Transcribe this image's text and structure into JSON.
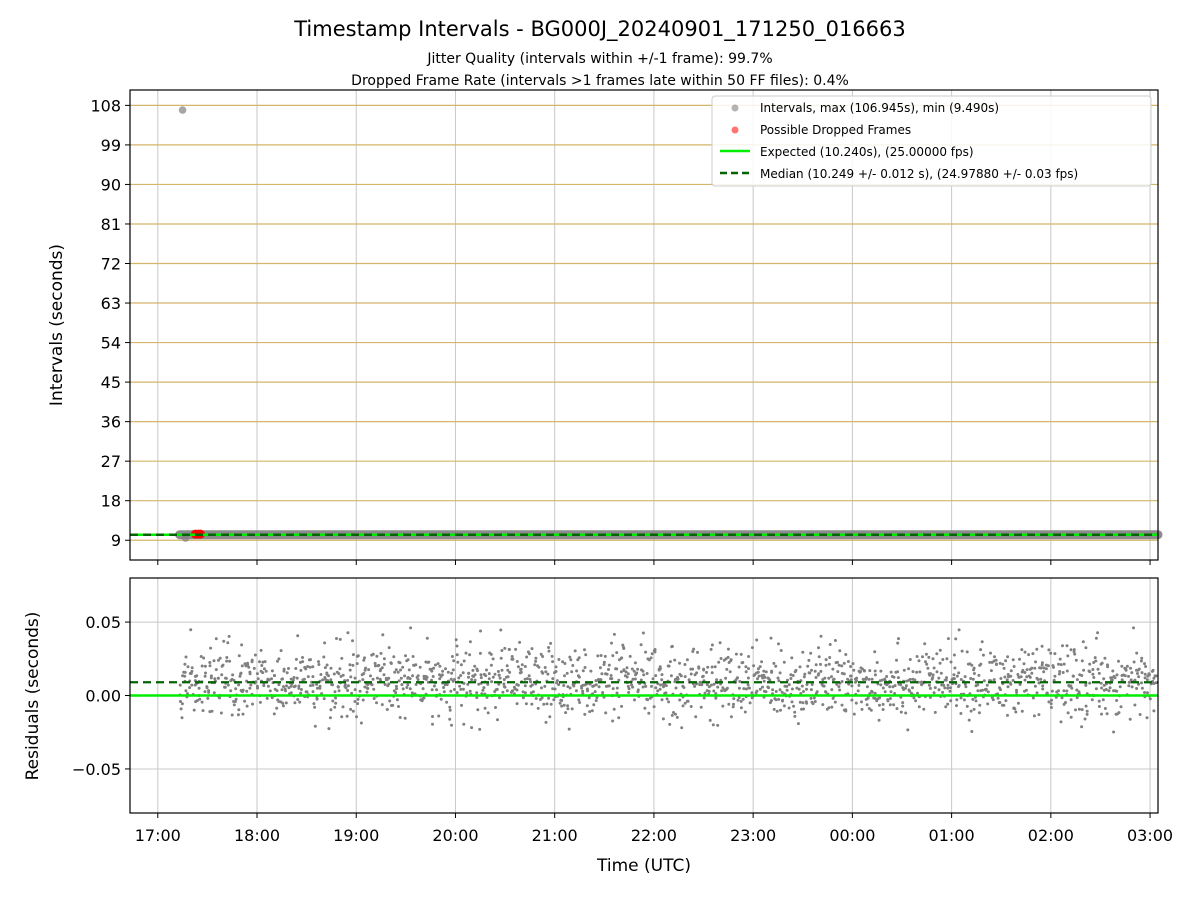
{
  "title": "Timestamp Intervals - BG000J_20240901_171250_016663",
  "subtitle_line1": "Jitter Quality (intervals within +/-1 frame): 99.7%",
  "subtitle_line2": "Dropped Frame Rate (intervals >1 frames late within 50 FF files): 0.4%",
  "colors": {
    "intervals": "#808080",
    "dropped": "#ff0000",
    "expected": "#00ee00",
    "median": "#006400",
    "hgrid_top": "#d4b56a",
    "grid": "#c8c8c8"
  },
  "chart_data": [
    {
      "type": "scatter",
      "name": "intervals-panel",
      "ylabel": "Intervals (seconds)",
      "xlabel": "",
      "ylim": [
        4.5,
        111.5
      ],
      "y_ticks": [
        9,
        18,
        27,
        36,
        45,
        54,
        63,
        72,
        81,
        90,
        99,
        108
      ],
      "y_tick_labels": [
        "9",
        "18",
        "27",
        "36",
        "45",
        "54",
        "63",
        "72",
        "81",
        "90",
        "99",
        "108"
      ],
      "xlim_hours": [
        16.72,
        27.08
      ],
      "grid": true,
      "legend_position": "top-right",
      "legend": [
        "Intervals, max (106.945s), min (9.490s)",
        "Possible Dropped Frames",
        "Expected (10.240s), (25.00000 fps)",
        "Median (10.249 +/- 0.012 s), (24.97880 +/- 0.03 fps)"
      ],
      "series": [
        {
          "name": "Intervals",
          "kind": "scatter",
          "x_start": 17.22,
          "x_end": 27.08,
          "y": 10.25,
          "outliers": [
            {
              "x": 17.25,
              "y": 106.945
            },
            {
              "x": 17.28,
              "y": 9.49
            }
          ]
        },
        {
          "name": "Possible Dropped Frames",
          "kind": "scatter",
          "points": [
            {
              "x": 17.38,
              "y": 10.4
            },
            {
              "x": 17.41,
              "y": 10.4
            },
            {
              "x": 17.43,
              "y": 10.4
            }
          ]
        },
        {
          "name": "Expected",
          "kind": "hline",
          "y": 10.24
        },
        {
          "name": "Median",
          "kind": "hline",
          "y": 10.249
        }
      ]
    },
    {
      "type": "scatter",
      "name": "residuals-panel",
      "ylabel": "Residuals (seconds)",
      "xlabel": "Time (UTC)",
      "ylim": [
        -0.08,
        0.08
      ],
      "y_ticks": [
        -0.05,
        0.0,
        0.05
      ],
      "y_tick_labels": [
        "−0.05",
        "0.00",
        "0.05"
      ],
      "xlim_hours": [
        16.72,
        27.08
      ],
      "x_ticks_hours": [
        17,
        18,
        19,
        20,
        21,
        22,
        23,
        24,
        25,
        26,
        27
      ],
      "x_tick_labels": [
        "17:00",
        "18:00",
        "19:00",
        "20:00",
        "21:00",
        "22:00",
        "23:00",
        "00:00",
        "01:00",
        "02:00",
        "03:00"
      ],
      "grid": true,
      "series": [
        {
          "name": "Residuals",
          "kind": "scatter",
          "x_start": 17.22,
          "x_end": 27.08,
          "mean": 0.009,
          "spread": 0.012,
          "count": 1800
        },
        {
          "name": "Expected",
          "kind": "hline",
          "y": 0.0
        },
        {
          "name": "Median",
          "kind": "hline",
          "y": 0.009
        }
      ]
    }
  ]
}
